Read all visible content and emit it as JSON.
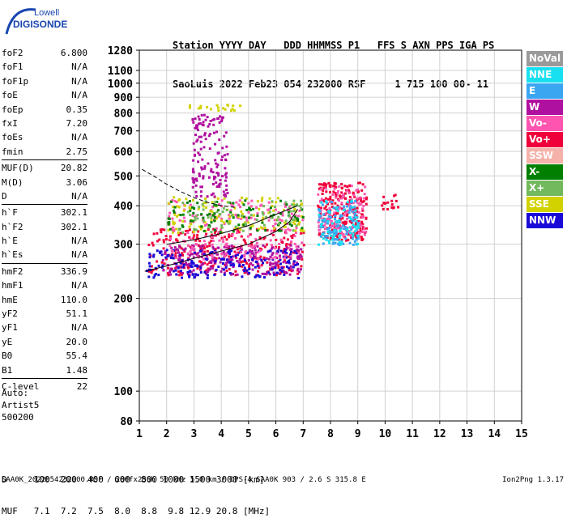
{
  "logo": {
    "line1": "Lowell",
    "line2": "DIGISONDE"
  },
  "header": {
    "columns": "Station YYYY DAY   DDD HHMMSS P1   FFS S AXN PPS IGA PS",
    "values": "SaoLuis 2022 Feb23 054 232000 RSF     1 715 100 00- 11"
  },
  "params": {
    "group1": [
      {
        "label": "foF2",
        "value": "6.800"
      },
      {
        "label": "foF1",
        "value": "N/A"
      },
      {
        "label": "foF1p",
        "value": "N/A"
      },
      {
        "label": "foE",
        "value": "N/A"
      },
      {
        "label": "foEp",
        "value": "0.35"
      },
      {
        "label": "fxI",
        "value": "7.20"
      },
      {
        "label": "foEs",
        "value": "N/A"
      },
      {
        "label": "fmin",
        "value": "2.75"
      }
    ],
    "group2": [
      {
        "label": "MUF(D)",
        "value": "20.82"
      },
      {
        "label": "M(D)",
        "value": "3.06"
      },
      {
        "label": "D",
        "value": "N/A"
      }
    ],
    "group3": [
      {
        "label": "h`F",
        "value": "302.1"
      },
      {
        "label": "h`F2",
        "value": "302.1"
      },
      {
        "label": "h`E",
        "value": "N/A"
      },
      {
        "label": "h`Es",
        "value": "N/A"
      }
    ],
    "group4": [
      {
        "label": "hmF2",
        "value": "336.9"
      },
      {
        "label": "hmF1",
        "value": "N/A"
      },
      {
        "label": "hmE",
        "value": "110.0"
      },
      {
        "label": "yF2",
        "value": "51.1"
      },
      {
        "label": "yF1",
        "value": "N/A"
      },
      {
        "label": "yE",
        "value": "20.0"
      },
      {
        "label": "B0",
        "value": "55.4"
      },
      {
        "label": "B1",
        "value": "1.48"
      }
    ],
    "group5": [
      {
        "label": "C-level",
        "value": "22"
      }
    ]
  },
  "autoscaling": {
    "line1": "Auto:",
    "line2": "Artist5",
    "line3": "500200"
  },
  "legend": [
    {
      "label": "NoVal",
      "color": "#9a9a9a"
    },
    {
      "label": "NNE",
      "color": "#19e0f0"
    },
    {
      "label": "E",
      "color": "#3aa6f2"
    },
    {
      "label": "W",
      "color": "#b0109f"
    },
    {
      "label": "Vo-",
      "color": "#ff55b0"
    },
    {
      "label": "Vo+",
      "color": "#f0003a"
    },
    {
      "label": "SSW",
      "color": "#f4b2aa"
    },
    {
      "label": "X-",
      "color": "#007f00"
    },
    {
      "label": "X+",
      "color": "#72b85c"
    },
    {
      "label": "SSE",
      "color": "#d2d200"
    },
    {
      "label": "NNW",
      "color": "#1a0ad8"
    }
  ],
  "muf_table": {
    "d_line": "D     100  200  400  600  800 1000 1500 3000 [km]",
    "muf_line": "MUF   7.1  7.2  7.5  8.0  8.8  9.8 12.9 20.8 [MHz]"
  },
  "footer": {
    "text": "SAA0K_2022054232000.RSF / 280fx256h 50 kHz 5.0 km / DPS-4 SAA0K 903 / 2.6 S 315.8 E",
    "version": "Ion2Png 1.3.17"
  },
  "chart_data": {
    "type": "scatter",
    "title": "",
    "xlabel": "",
    "ylabel": "",
    "xlim": [
      1,
      15
    ],
    "ylim": [
      80,
      1280
    ],
    "y_scale": "log",
    "x_ticks": [
      "1",
      "2",
      "3",
      "4",
      "5",
      "6",
      "7",
      "8",
      "9",
      "10",
      "11",
      "12",
      "13",
      "14",
      "15"
    ],
    "y_ticks": [
      80,
      100,
      200,
      300,
      400,
      500,
      600,
      700,
      800,
      900,
      1000,
      1100,
      1280
    ],
    "grid": true,
    "legend_position": "right",
    "echo_clusters": [
      {
        "name": "Vo+",
        "color": "#f0003a",
        "f": [
          1.3,
          7.0
        ],
        "h": [
          240,
          340
        ],
        "n": 260
      },
      {
        "name": "W",
        "color": "#b0109f",
        "f": [
          1.8,
          6.9
        ],
        "h": [
          240,
          300
        ],
        "n": 240
      },
      {
        "name": "NNW",
        "color": "#1a0ad8",
        "f": [
          1.2,
          6.8
        ],
        "h": [
          235,
          290
        ],
        "n": 180
      },
      {
        "name": "Vo-",
        "color": "#ff55b0",
        "f": [
          2.0,
          7.0
        ],
        "h": [
          270,
          420
        ],
        "n": 200
      },
      {
        "name": "SSE",
        "color": "#d2d200",
        "f": [
          2.0,
          7.0
        ],
        "h": [
          330,
          430
        ],
        "n": 130
      },
      {
        "name": "X-",
        "color": "#007f00",
        "f": [
          2.0,
          7.0
        ],
        "h": [
          330,
          420
        ],
        "n": 90
      },
      {
        "name": "X+",
        "color": "#72b85c",
        "f": [
          2.0,
          7.0
        ],
        "h": [
          330,
          420
        ],
        "n": 70
      },
      {
        "name": "W",
        "color": "#b0109f",
        "f": [
          2.9,
          4.2
        ],
        "h": [
          430,
          800
        ],
        "n": 140
      },
      {
        "name": "Vo+",
        "color": "#f0003a",
        "f": [
          7.5,
          9.3
        ],
        "h": [
          310,
          480
        ],
        "n": 230
      },
      {
        "name": "Vo-",
        "color": "#ff55b0",
        "f": [
          7.5,
          9.3
        ],
        "h": [
          320,
          470
        ],
        "n": 120
      },
      {
        "name": "E",
        "color": "#3aa6f2",
        "f": [
          7.5,
          9.0
        ],
        "h": [
          300,
          420
        ],
        "n": 110
      },
      {
        "name": "NNE",
        "color": "#19e0f0",
        "f": [
          7.5,
          9.0
        ],
        "h": [
          300,
          420
        ],
        "n": 60
      },
      {
        "name": "Vo+",
        "color": "#f0003a",
        "f": [
          9.8,
          10.5
        ],
        "h": [
          390,
          440
        ],
        "n": 18
      },
      {
        "name": "SSE",
        "color": "#d2d200",
        "f": [
          2.8,
          4.8
        ],
        "h": [
          820,
          860
        ],
        "n": 20
      }
    ],
    "trace_curves": [
      {
        "name": "virtual-height-trace",
        "style": "solid",
        "x": [
          1.2,
          2.0,
          3.0,
          4.0,
          5.0,
          6.0,
          6.5,
          6.8
        ],
        "y": [
          245,
          255,
          270,
          285,
          300,
          330,
          355,
          390
        ]
      },
      {
        "name": "profile-curve",
        "style": "solid",
        "x": [
          2.0,
          3.0,
          4.0,
          5.0,
          6.0,
          6.8
        ],
        "y": [
          300,
          310,
          325,
          345,
          375,
          400
        ]
      },
      {
        "name": "muf-curve",
        "style": "dashed",
        "x": [
          1.1,
          1.6,
          2.0,
          2.5,
          3.0,
          3.5,
          4.0,
          4.5
        ],
        "y": [
          525,
          495,
          470,
          445,
          425,
          410,
          400,
          395
        ]
      }
    ]
  }
}
